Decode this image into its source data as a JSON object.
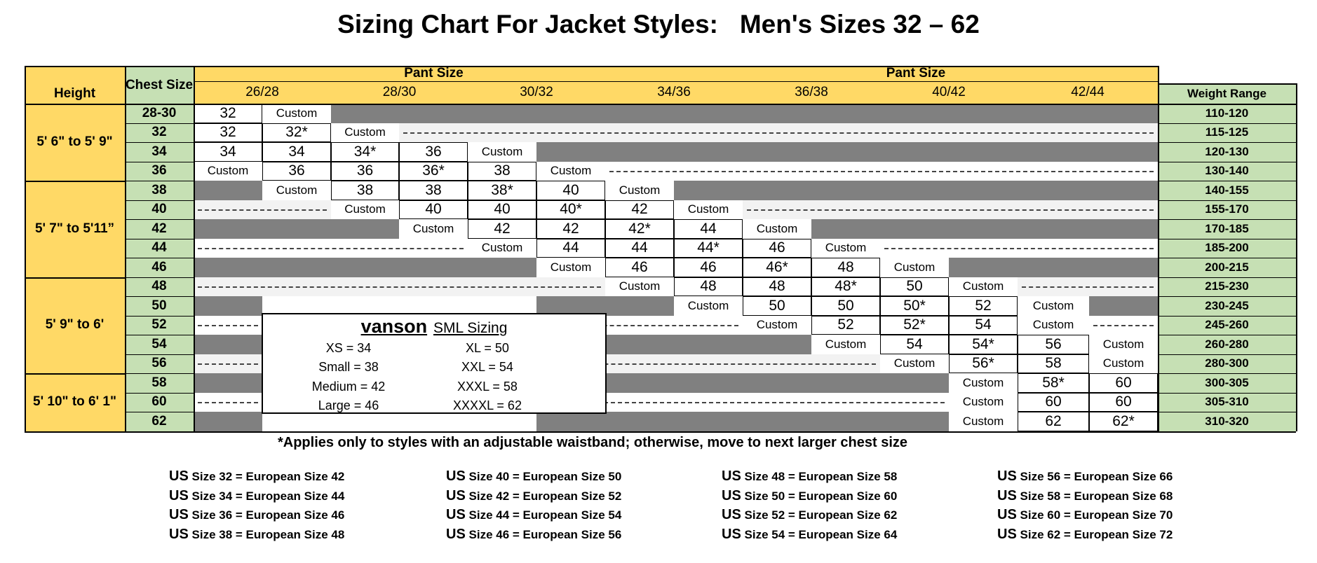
{
  "title": "Sizing Chart For Jacket Styles:   Men's Sizes 32 – 62",
  "headers": {
    "height": "Height",
    "chest": "Chest Size",
    "pant_size_left": "Pant Size",
    "pant_size_right": "Pant Size",
    "weight": "Weight Range"
  },
  "pant_sizes": [
    "26/28",
    "28/30",
    "30/32",
    "34/36",
    "36/38",
    "40/42",
    "42/44"
  ],
  "height_groups": [
    {
      "label": "5' 6\" to 5' 9\"",
      "rows": 4
    },
    {
      "label": "5' 7\" to 5'11”",
      "rows": 5
    },
    {
      "label": "5' 9\" to 6'",
      "rows": 5
    },
    {
      "label": "5' 10\" to 6' 1\"",
      "rows": 3
    }
  ],
  "rows": [
    {
      "chest": "28-30",
      "weight": "110-120",
      "cells": [
        "32",
        "Custom",
        "G",
        "G",
        "G",
        "G",
        "G",
        "G",
        "G",
        "G",
        "G",
        "G",
        "G",
        "G"
      ]
    },
    {
      "chest": "32",
      "weight": "115-125",
      "cells": [
        "32",
        "32*",
        "Custom",
        "D",
        "D",
        "D",
        "D",
        "D",
        "D",
        "D",
        "D",
        "D",
        "D",
        "D"
      ]
    },
    {
      "chest": "34",
      "weight": "120-130",
      "cells": [
        "34",
        "34",
        "34*",
        "36",
        "Custom",
        "G",
        "G",
        "G",
        "G",
        "G",
        "G",
        "G",
        "G",
        "G"
      ]
    },
    {
      "chest": "36",
      "weight": "130-140",
      "cells": [
        "Custom",
        "36",
        "36",
        "36*",
        "38",
        "Custom",
        "D",
        "D",
        "D",
        "D",
        "D",
        "D",
        "D",
        "D"
      ]
    },
    {
      "chest": "38",
      "weight": "140-155",
      "cells": [
        "G",
        "Custom",
        "38",
        "38",
        "38*",
        "40",
        "Custom",
        "G",
        "G",
        "G",
        "G",
        "G",
        "G",
        "G"
      ]
    },
    {
      "chest": "40",
      "weight": "155-170",
      "cells": [
        "D",
        "D",
        "Custom",
        "40",
        "40",
        "40*",
        "42",
        "Custom",
        "D",
        "D",
        "D",
        "D",
        "D",
        "D"
      ]
    },
    {
      "chest": "42",
      "weight": "170-185",
      "cells": [
        "G",
        "G",
        "G",
        "Custom",
        "42",
        "42",
        "42*",
        "44",
        "Custom",
        "G",
        "G",
        "G",
        "G",
        "G"
      ]
    },
    {
      "chest": "44",
      "weight": "185-200",
      "cells": [
        "D",
        "D",
        "D",
        "D",
        "Custom",
        "44",
        "44",
        "44*",
        "46",
        "Custom",
        "D",
        "D",
        "D",
        "D"
      ]
    },
    {
      "chest": "46",
      "weight": "200-215",
      "cells": [
        "G",
        "G",
        "G",
        "G",
        "G",
        "Custom",
        "46",
        "46",
        "46*",
        "48",
        "Custom",
        "G",
        "G",
        "G"
      ]
    },
    {
      "chest": "48",
      "weight": "215-230",
      "cells": [
        "D",
        "D",
        "D",
        "D",
        "D",
        "D",
        "Custom",
        "48",
        "48",
        "48*",
        "50",
        "Custom",
        "D",
        "D"
      ]
    },
    {
      "chest": "50",
      "weight": "230-245",
      "cells": [
        "G",
        "X",
        "X",
        "X",
        "X",
        "G",
        "G",
        "Custom",
        "50",
        "50",
        "50*",
        "52",
        "Custom",
        "G"
      ]
    },
    {
      "chest": "52",
      "weight": "245-260",
      "cells": [
        "D",
        "X",
        "X",
        "X",
        "X",
        "D",
        "D",
        "D",
        "Custom",
        "52",
        "52*",
        "54",
        "Custom",
        "D"
      ]
    },
    {
      "chest": "54",
      "weight": "260-280",
      "cells": [
        "G",
        "X",
        "X",
        "X",
        "X",
        "G",
        "G",
        "G",
        "G",
        "Custom",
        "54",
        "54*",
        "56",
        "Custom"
      ]
    },
    {
      "chest": "56",
      "weight": "280-300",
      "cells": [
        "D",
        "X",
        "X",
        "X",
        "X",
        "D",
        "D",
        "D",
        "D",
        "D",
        "Custom",
        "56*",
        "58",
        "Custom"
      ]
    },
    {
      "chest": "58",
      "weight": "300-305",
      "cells": [
        "G",
        "X",
        "X",
        "X",
        "X",
        "G",
        "G",
        "G",
        "G",
        "G",
        "G",
        "Custom",
        "58*",
        "60"
      ]
    },
    {
      "chest": "60",
      "weight": "305-310",
      "cells": [
        "D",
        "X",
        "X",
        "X",
        "X",
        "D",
        "D",
        "D",
        "D",
        "D",
        "D",
        "Custom",
        "60",
        "60"
      ]
    },
    {
      "chest": "62",
      "weight": "310-320",
      "cells": [
        "G",
        "X",
        "X",
        "X",
        "X",
        "G",
        "G",
        "G",
        "G",
        "G",
        "G",
        "Custom",
        "62",
        "62*"
      ]
    }
  ],
  "sml": {
    "brand": "vanson",
    "title": "SML Sizing",
    "left": [
      "XS = 34",
      "Small = 38",
      "Medium = 42",
      "Large = 46"
    ],
    "right": [
      "XL = 50",
      "XXL = 54",
      "XXXL = 58",
      "XXXXL = 62"
    ]
  },
  "note": "*Applies only to styles with an adjustable waistband; otherwise, move to next larger chest size",
  "conversion_columns": [
    [
      {
        "us": "US",
        "text": "Size 32 = European Size  42"
      },
      {
        "us": "US",
        "text": "Size 34 = European Size  44"
      },
      {
        "us": "US",
        "text": "Size 36 = European Size  46"
      },
      {
        "us": "US",
        "text": "Size 38 = European Size  48"
      }
    ],
    [
      {
        "us": "US",
        "text": "Size 40 = European Size  50"
      },
      {
        "us": "US",
        "text": "Size 42 = European Size  52"
      },
      {
        "us": "US",
        "text": "Size 44 = European Size  54"
      },
      {
        "us": "US",
        "text": "Size 46 = European Size  56"
      }
    ],
    [
      {
        "us": "US",
        "text": "Size 48 = European Size  58"
      },
      {
        "us": "US",
        "text": "Size 50 = European Size  60"
      },
      {
        "us": "US",
        "text": "Size 52 = European Size  62"
      },
      {
        "us": "US",
        "text": "Size 54 = European Size  64"
      }
    ],
    [
      {
        "us": "US",
        "text": "Size 56 = European Size  66"
      },
      {
        "us": "US",
        "text": "Size 58 = European Size  68"
      },
      {
        "us": "US",
        "text": "Size 60 = European Size  70"
      },
      {
        "us": "US",
        "text": "Size 62 = European Size  72"
      }
    ]
  ],
  "colors": {
    "header_yellow": "#FFD966",
    "weight_green": "#C6E0B4",
    "dark_gray": "#808080",
    "light_gray": "#F2F2F2",
    "grid_line": "#000000"
  }
}
